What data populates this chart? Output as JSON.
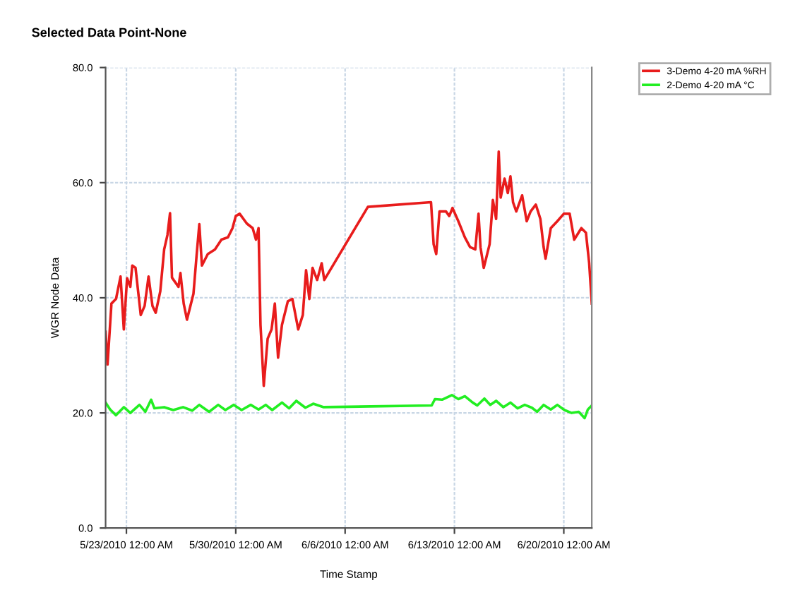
{
  "chart_data": {
    "type": "line",
    "title": "Selected Data Point-None",
    "xlabel": "Time Stamp",
    "ylabel": "WGR Node Data",
    "xlim": [
      "2010-05-21T16:00",
      "2010-06-21T19:00"
    ],
    "xticks": [
      {
        "value": "2010-05-23",
        "label": "5/23/2010 12:00 AM"
      },
      {
        "value": "2010-05-30",
        "label": "5/30/2010 12:00 AM"
      },
      {
        "value": "2010-06-06",
        "label": "6/6/2010 12:00 AM"
      },
      {
        "value": "2010-06-13",
        "label": "6/13/2010 12:00 AM"
      },
      {
        "value": "2010-06-20",
        "label": "6/20/2010 12:00 AM"
      }
    ],
    "ylim": [
      0,
      80
    ],
    "yticks": [
      {
        "value": 0,
        "label": "0.0"
      },
      {
        "value": 20,
        "label": "20.0"
      },
      {
        "value": 40,
        "label": "40.0"
      },
      {
        "value": 60,
        "label": "60.0"
      },
      {
        "value": 80,
        "label": "80.0"
      }
    ],
    "grid": true,
    "legend": "top right",
    "marker": "none",
    "line_style": "solid",
    "series": [
      {
        "name": "3-Demo 4-20 mA %RH",
        "color": "#e81c1c",
        "x": [
          "2010-05-21T16:00",
          "2010-05-21T19:00",
          "2010-05-22T01:00",
          "2010-05-22T08:00",
          "2010-05-22T15:00",
          "2010-05-22T20:00",
          "2010-05-23T01:00",
          "2010-05-23T06:00",
          "2010-05-23T09:00",
          "2010-05-23T14:00",
          "2010-05-23T22:00",
          "2010-05-24T04:00",
          "2010-05-24T10:00",
          "2010-05-24T16:00",
          "2010-05-24T21:00",
          "2010-05-25T04:00",
          "2010-05-25T10:00",
          "2010-05-25T15:00",
          "2010-05-25T19:00",
          "2010-05-25T22:00",
          "2010-05-26T08:00",
          "2010-05-26T11:00",
          "2010-05-26T16:00",
          "2010-05-26T21:00",
          "2010-05-27T07:00",
          "2010-05-27T12:00",
          "2010-05-27T16:00",
          "2010-05-27T20:00",
          "2010-05-28T05:00",
          "2010-05-28T16:00",
          "2010-05-29T02:00",
          "2010-05-29T12:00",
          "2010-05-29T19:00",
          "2010-05-30T00:00",
          "2010-05-30T06:00",
          "2010-05-30T17:00",
          "2010-05-31T02:00",
          "2010-05-31T07:00",
          "2010-05-31T11:00",
          "2010-05-31T14:00",
          "2010-05-31T19:00",
          "2010-06-01T01:00",
          "2010-06-01T07:00",
          "2010-06-01T12:00",
          "2010-06-01T17:00",
          "2010-06-01T23:00",
          "2010-06-02T08:00",
          "2010-06-02T15:00",
          "2010-06-03T00:00",
          "2010-06-03T07:00",
          "2010-06-03T12:00",
          "2010-06-03T17:00",
          "2010-06-03T22:00",
          "2010-06-04T05:00",
          "2010-06-04T12:00",
          "2010-06-04T16:00",
          "2010-06-07T11:00",
          "2010-06-11T12:00",
          "2010-06-11T16:00",
          "2010-06-11T20:00",
          "2010-06-12T01:00",
          "2010-06-12T11:00",
          "2010-06-12T16:00",
          "2010-06-12T21:00",
          "2010-06-13T06:00",
          "2010-06-13T16:00",
          "2010-06-14T00:00",
          "2010-06-14T08:00",
          "2010-06-14T13:00",
          "2010-06-14T16:00",
          "2010-06-14T21:00",
          "2010-06-15T06:00",
          "2010-06-15T11:00",
          "2010-06-15T16:00",
          "2010-06-15T20:00",
          "2010-06-15T23:00",
          "2010-06-16T05:00",
          "2010-06-16T10:00",
          "2010-06-16T14:00",
          "2010-06-16T18:00",
          "2010-06-16T23:00",
          "2010-06-17T08:00",
          "2010-06-17T15:00",
          "2010-06-17T21:00",
          "2010-06-18T05:00",
          "2010-06-18T12:00",
          "2010-06-18T17:00",
          "2010-06-18T20:00",
          "2010-06-19T04:00",
          "2010-06-19T14:00",
          "2010-06-20T00:00",
          "2010-06-20T09:00",
          "2010-06-20T16:00",
          "2010-06-21T03:00",
          "2010-06-21T10:00",
          "2010-06-21T15:00",
          "2010-06-21T19:00"
        ],
        "values": [
          34.1,
          28.4,
          39.0,
          39.8,
          43.7,
          34.5,
          43.4,
          41.9,
          45.6,
          45.2,
          37.0,
          38.6,
          43.7,
          38.6,
          37.4,
          41.1,
          48.4,
          50.9,
          54.7,
          43.5,
          41.9,
          44.3,
          39.0,
          36.2,
          40.7,
          47.6,
          52.8,
          45.6,
          47.6,
          48.4,
          50.1,
          50.5,
          52.1,
          54.2,
          54.6,
          52.9,
          52.1,
          50.1,
          52.1,
          35.3,
          24.7,
          32.9,
          34.5,
          39.0,
          29.6,
          35.3,
          39.4,
          39.8,
          34.5,
          37.0,
          44.8,
          39.8,
          45.2,
          43.1,
          46.0,
          43.1,
          55.8,
          56.6,
          49.3,
          47.6,
          55.0,
          55.0,
          54.2,
          55.6,
          53.3,
          50.5,
          48.8,
          48.4,
          54.6,
          48.8,
          45.2,
          49.3,
          57.0,
          53.7,
          65.4,
          57.4,
          60.7,
          58.2,
          61.1,
          56.6,
          55.0,
          57.8,
          53.3,
          55.0,
          56.2,
          53.7,
          48.8,
          46.8,
          52.1,
          53.3,
          54.6,
          54.6,
          50.1,
          52.1,
          51.3,
          46.0,
          39.0
        ]
      },
      {
        "name": "2-Demo 4-20 mA °C",
        "color": "#22ee22",
        "x": [
          "2010-05-21T16:00",
          "2010-05-21T23:00",
          "2010-05-22T08:00",
          "2010-05-22T20:00",
          "2010-05-23T06:00",
          "2010-05-23T20:00",
          "2010-05-24T05:00",
          "2010-05-24T14:00",
          "2010-05-24T19:00",
          "2010-05-25T10:00",
          "2010-05-26T00:00",
          "2010-05-26T15:00",
          "2010-05-27T05:00",
          "2010-05-27T16:00",
          "2010-05-28T07:00",
          "2010-05-28T21:00",
          "2010-05-29T08:00",
          "2010-05-29T21:00",
          "2010-05-30T09:00",
          "2010-05-30T23:00",
          "2010-05-31T11:00",
          "2010-05-31T22:00",
          "2010-06-01T08:00",
          "2010-06-01T23:00",
          "2010-06-02T10:00",
          "2010-06-02T21:00",
          "2010-06-03T11:00",
          "2010-06-03T23:00",
          "2010-06-04T15:00",
          "2010-06-11T13:00",
          "2010-06-11T18:00",
          "2010-06-12T05:00",
          "2010-06-12T20:00",
          "2010-06-13T06:00",
          "2010-06-13T16:00",
          "2010-06-14T04:00",
          "2010-06-14T11:00",
          "2010-06-14T22:00",
          "2010-06-15T07:00",
          "2010-06-15T16:00",
          "2010-06-16T03:00",
          "2010-06-16T14:00",
          "2010-06-17T01:00",
          "2010-06-17T12:00",
          "2010-06-17T23:00",
          "2010-06-18T07:00",
          "2010-06-18T17:00",
          "2010-06-19T04:00",
          "2010-06-19T14:00",
          "2010-06-20T01:00",
          "2010-06-20T12:00",
          "2010-06-20T23:00",
          "2010-06-21T08:00",
          "2010-06-21T13:00",
          "2010-06-21T19:00"
        ],
        "values": [
          21.8,
          20.6,
          19.6,
          21.0,
          20.0,
          21.4,
          20.2,
          22.3,
          20.8,
          21.0,
          20.5,
          21.0,
          20.4,
          21.4,
          20.2,
          21.4,
          20.5,
          21.4,
          20.5,
          21.4,
          20.6,
          21.4,
          20.5,
          21.8,
          20.8,
          22.1,
          20.9,
          21.6,
          21.0,
          21.3,
          22.4,
          22.3,
          23.1,
          22.4,
          22.9,
          21.8,
          21.3,
          22.5,
          21.4,
          22.1,
          21.0,
          21.8,
          20.8,
          21.4,
          20.9,
          20.2,
          21.4,
          20.6,
          21.4,
          20.5,
          20.0,
          20.2,
          19.1,
          20.6,
          21.3
        ]
      }
    ]
  }
}
